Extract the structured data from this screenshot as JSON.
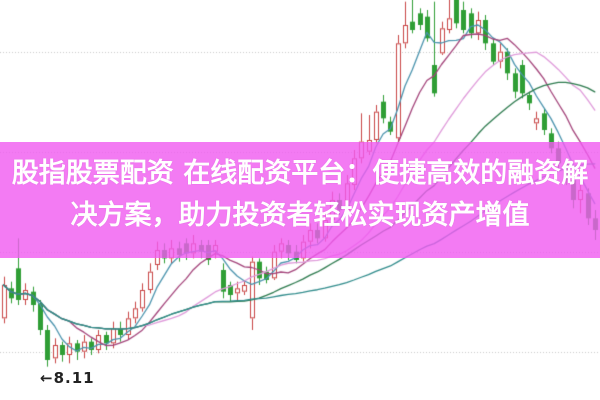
{
  "banner": {
    "line1": "股指股票配资 在线配资平台：便捷高效的融资解",
    "line2": "决方案，助力投资者轻松实现资产增值",
    "background_color": "#f05af0",
    "text_color": "#ffffff"
  },
  "chart_data": {
    "type": "candlestick",
    "title": "",
    "xlabel": "",
    "ylabel": "",
    "grid": "horizontal-dotted",
    "ylim": [
      7.91,
      10.31
    ],
    "gridline_prices": [
      10.0,
      9.4,
      8.8,
      8.2
    ],
    "low_marker": {
      "arrow": "←",
      "value": "8.11"
    },
    "colors": {
      "up": "#c84545",
      "down": "#2f9e35",
      "grid": "#c8c8c8",
      "marker_text": "#222222"
    },
    "layout": {
      "left": 3.5,
      "spacing": 7.3,
      "body_width": 5
    },
    "moving_averages": [
      {
        "period": 5,
        "color": "#4a93ad"
      },
      {
        "period": 10,
        "color": "#a3437a"
      },
      {
        "period": 20,
        "color": "#df9ada"
      },
      {
        "period": 30,
        "color": "#2d7a4e"
      },
      {
        "period": 60,
        "color": "#2f8b8b"
      }
    ],
    "candles": [
      [
        8.4,
        8.65,
        8.37,
        8.6
      ],
      [
        8.58,
        8.62,
        8.49,
        8.52
      ],
      [
        8.7,
        8.88,
        8.48,
        8.51
      ],
      [
        8.51,
        8.61,
        8.48,
        8.57
      ],
      [
        8.56,
        8.59,
        8.44,
        8.48
      ],
      [
        8.49,
        8.51,
        8.3,
        8.33
      ],
      [
        8.33,
        8.36,
        8.11,
        8.15
      ],
      [
        8.16,
        8.28,
        8.13,
        8.24
      ],
      [
        8.24,
        8.26,
        8.14,
        8.18
      ],
      [
        8.18,
        8.29,
        8.13,
        8.25
      ],
      [
        8.25,
        8.27,
        8.15,
        8.2
      ],
      [
        8.2,
        8.3,
        8.16,
        8.26
      ],
      [
        8.26,
        8.28,
        8.18,
        8.21
      ],
      [
        8.21,
        8.33,
        8.19,
        8.3
      ],
      [
        8.3,
        8.32,
        8.21,
        8.25
      ],
      [
        8.25,
        8.38,
        8.22,
        8.34
      ],
      [
        8.34,
        8.38,
        8.26,
        8.3
      ],
      [
        8.3,
        8.44,
        8.27,
        8.4
      ],
      [
        8.4,
        8.5,
        8.37,
        8.46
      ],
      [
        8.46,
        8.61,
        8.44,
        8.57
      ],
      [
        8.57,
        8.73,
        8.55,
        8.68
      ],
      [
        8.72,
        8.86,
        8.69,
        8.81
      ],
      [
        8.81,
        8.85,
        8.73,
        8.76
      ],
      [
        8.76,
        8.87,
        8.73,
        8.82
      ],
      [
        8.82,
        8.86,
        8.74,
        8.78
      ],
      [
        8.85,
        8.88,
        8.75,
        8.79
      ],
      [
        8.79,
        8.9,
        8.76,
        8.85
      ],
      [
        8.84,
        8.87,
        8.76,
        8.8
      ],
      [
        8.84,
        8.87,
        8.72,
        8.75
      ],
      [
        8.8,
        8.87,
        8.76,
        8.84
      ],
      [
        8.69,
        8.73,
        8.52,
        8.56
      ],
      [
        8.6,
        8.62,
        8.5,
        8.54
      ],
      [
        8.55,
        8.62,
        8.51,
        8.58
      ],
      [
        8.56,
        8.63,
        8.54,
        8.6
      ],
      [
        8.4,
        8.77,
        8.33,
        8.74
      ],
      [
        8.74,
        8.76,
        8.6,
        8.64
      ],
      [
        8.68,
        8.71,
        8.61,
        8.63
      ],
      [
        8.64,
        8.84,
        8.63,
        8.8
      ],
      [
        8.8,
        8.88,
        8.76,
        8.85
      ],
      [
        8.84,
        8.87,
        8.75,
        8.79
      ],
      [
        8.8,
        8.84,
        8.73,
        8.75
      ],
      [
        8.76,
        8.9,
        8.74,
        8.86
      ],
      [
        8.86,
        8.97,
        8.82,
        8.93
      ],
      [
        8.93,
        8.97,
        8.85,
        8.88
      ],
      [
        8.88,
        9.04,
        8.86,
        8.99
      ],
      [
        8.99,
        9.16,
        8.96,
        9.11
      ],
      [
        9.11,
        9.15,
        9.02,
        9.05
      ],
      [
        9.05,
        9.26,
        9.03,
        9.21
      ],
      [
        9.2,
        9.41,
        9.17,
        9.36
      ],
      [
        9.36,
        9.63,
        9.33,
        9.46
      ],
      [
        9.4,
        9.62,
        9.38,
        9.47
      ],
      [
        9.47,
        9.68,
        9.45,
        9.64
      ],
      [
        9.7,
        9.74,
        9.57,
        9.6
      ],
      [
        9.58,
        9.61,
        9.5,
        9.52
      ],
      [
        9.48,
        10.1,
        9.46,
        10.05
      ],
      [
        10.05,
        10.3,
        10.02,
        10.16
      ],
      [
        10.18,
        10.31,
        10.11,
        10.13
      ],
      [
        10.23,
        10.26,
        10.13,
        10.16
      ],
      [
        10.21,
        10.25,
        10.06,
        10.08
      ],
      [
        9.92,
        10.3,
        9.73,
        9.75
      ],
      [
        9.99,
        10.18,
        9.98,
        10.14
      ],
      [
        10.13,
        10.31,
        10.11,
        10.2
      ],
      [
        10.34,
        10.36,
        10.14,
        10.17
      ],
      [
        10.25,
        10.3,
        10.11,
        10.13
      ],
      [
        10.23,
        10.26,
        10.08,
        10.11
      ],
      [
        10.11,
        10.24,
        10.07,
        10.19
      ],
      [
        10.19,
        10.22,
        10.01,
        10.05
      ],
      [
        10.05,
        10.08,
        9.92,
        9.94
      ],
      [
        9.94,
        10.05,
        9.9,
        10.0
      ],
      [
        10.0,
        10.02,
        9.83,
        9.87
      ],
      [
        9.87,
        9.9,
        9.72,
        9.76
      ],
      [
        9.92,
        9.95,
        9.72,
        9.75
      ],
      [
        9.74,
        9.76,
        9.65,
        9.69
      ],
      [
        9.57,
        9.64,
        9.53,
        9.6
      ],
      [
        9.63,
        9.66,
        9.5,
        9.53
      ],
      [
        9.51,
        9.54,
        9.39,
        9.42
      ],
      [
        9.42,
        9.46,
        9.29,
        9.33
      ],
      [
        9.33,
        9.36,
        9.2,
        9.23
      ],
      [
        9.23,
        9.27,
        9.06,
        9.11
      ],
      [
        9.11,
        9.21,
        9.03,
        9.17
      ],
      [
        9.15,
        9.18,
        8.96,
        9.0
      ],
      [
        9.0,
        9.05,
        8.87,
        8.93
      ]
    ]
  }
}
